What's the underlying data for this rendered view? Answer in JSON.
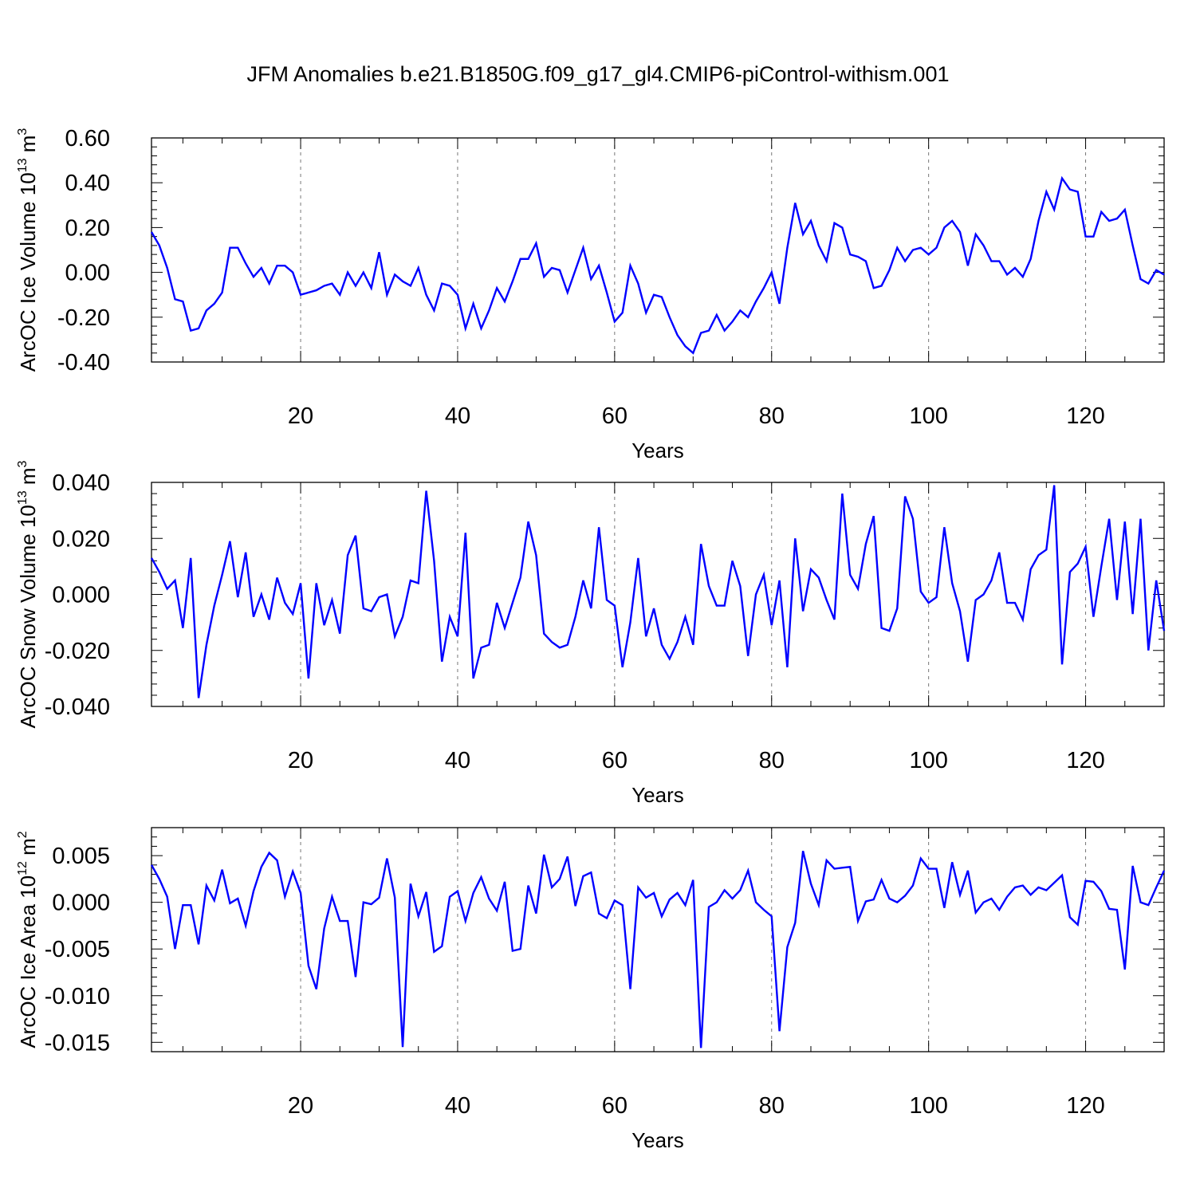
{
  "title": "JFM Anomalies b.e21.B1850G.f09_g17_gl4.CMIP6-piControl-withism.001",
  "colors": {
    "series": "#0000ff",
    "axis": "#000000",
    "grid": "#777777"
  },
  "chart_data": [
    {
      "type": "line",
      "xlabel": "Years",
      "ylabel": "ArcOC Ice Volume 10",
      "ylabel_exp": "13",
      "ylabel_unit": " m",
      "ylabel_unit_exp": "3",
      "xlim": [
        1,
        130
      ],
      "ylim": [
        -0.4,
        0.6
      ],
      "xticks": [
        20,
        40,
        60,
        80,
        100,
        120
      ],
      "xtick_labels": [
        "20",
        "40",
        "60",
        "80",
        "100",
        "120"
      ],
      "yticks": [
        -0.4,
        -0.2,
        0.0,
        0.2,
        0.4,
        0.6
      ],
      "ytick_labels": [
        "-0.40",
        "-0.20",
        "0.00",
        "0.20",
        "0.40",
        "0.60"
      ],
      "grid": "vertical dashed at major x ticks",
      "series": [
        {
          "x_start": 1,
          "values": [
            0.18,
            0.12,
            0.02,
            -0.12,
            -0.13,
            -0.26,
            -0.25,
            -0.17,
            -0.14,
            -0.09,
            0.11,
            0.11,
            0.04,
            -0.02,
            0.02,
            -0.05,
            0.03,
            0.03,
            0.0,
            -0.1,
            -0.09,
            -0.08,
            -0.06,
            -0.05,
            -0.1,
            0.0,
            -0.06,
            0.0,
            -0.07,
            0.09,
            -0.1,
            -0.01,
            -0.04,
            -0.06,
            0.02,
            -0.1,
            -0.17,
            -0.05,
            -0.06,
            -0.1,
            -0.25,
            -0.14,
            -0.25,
            -0.17,
            -0.07,
            -0.13,
            -0.04,
            0.06,
            0.06,
            0.13,
            -0.02,
            0.02,
            0.01,
            -0.09,
            0.01,
            0.11,
            -0.03,
            0.03,
            -0.09,
            -0.22,
            -0.18,
            0.03,
            -0.05,
            -0.18,
            -0.1,
            -0.11,
            -0.2,
            -0.28,
            -0.33,
            -0.36,
            -0.27,
            -0.26,
            -0.19,
            -0.26,
            -0.22,
            -0.17,
            -0.2,
            -0.13,
            -0.07,
            0.0,
            -0.14,
            0.11,
            0.31,
            0.17,
            0.23,
            0.12,
            0.05,
            0.22,
            0.2,
            0.08,
            0.07,
            0.05,
            -0.07,
            -0.06,
            0.01,
            0.11,
            0.05,
            0.1,
            0.11,
            0.08,
            0.11,
            0.2,
            0.23,
            0.18,
            0.03,
            0.17,
            0.12,
            0.05,
            0.05,
            -0.01,
            0.02,
            -0.02,
            0.06,
            0.23,
            0.36,
            0.28,
            0.42,
            0.37,
            0.36,
            0.16,
            0.16,
            0.27,
            0.23,
            0.24,
            0.28,
            0.12,
            -0.03,
            -0.05,
            0.01,
            -0.01
          ]
        }
      ]
    },
    {
      "type": "line",
      "xlabel": "Years",
      "ylabel": "ArcOC Snow Volume 10",
      "ylabel_exp": "13",
      "ylabel_unit": " m",
      "ylabel_unit_exp": "3",
      "xlim": [
        1,
        130
      ],
      "ylim": [
        -0.04,
        0.04
      ],
      "xticks": [
        20,
        40,
        60,
        80,
        100,
        120
      ],
      "xtick_labels": [
        "20",
        "40",
        "60",
        "80",
        "100",
        "120"
      ],
      "yticks": [
        -0.04,
        -0.02,
        0.0,
        0.02,
        0.04
      ],
      "ytick_labels": [
        "-0.040",
        "-0.020",
        "0.000",
        "0.020",
        "0.040"
      ],
      "grid": "vertical dashed at major x ticks",
      "series": [
        {
          "x_start": 1,
          "values": [
            0.013,
            0.008,
            0.002,
            0.005,
            -0.012,
            0.013,
            -0.037,
            -0.018,
            -0.004,
            0.007,
            0.019,
            -0.001,
            0.015,
            -0.008,
            0.0,
            -0.009,
            0.006,
            -0.003,
            -0.007,
            0.004,
            -0.03,
            0.004,
            -0.011,
            -0.002,
            -0.014,
            0.014,
            0.021,
            -0.005,
            -0.006,
            -0.001,
            0.0,
            -0.015,
            -0.008,
            0.005,
            0.004,
            0.037,
            0.012,
            -0.024,
            -0.008,
            -0.015,
            0.022,
            -0.03,
            -0.019,
            -0.018,
            -0.003,
            -0.012,
            -0.003,
            0.006,
            0.026,
            0.014,
            -0.014,
            -0.017,
            -0.019,
            -0.018,
            -0.008,
            0.005,
            -0.005,
            0.024,
            -0.002,
            -0.004,
            -0.026,
            -0.01,
            0.013,
            -0.015,
            -0.005,
            -0.018,
            -0.023,
            -0.017,
            -0.008,
            -0.018,
            0.018,
            0.003,
            -0.004,
            -0.004,
            0.012,
            0.003,
            -0.022,
            0.0,
            0.007,
            -0.011,
            0.005,
            -0.026,
            0.02,
            -0.006,
            0.009,
            0.006,
            -0.002,
            -0.009,
            0.036,
            0.007,
            0.002,
            0.018,
            0.028,
            -0.012,
            -0.013,
            -0.005,
            0.035,
            0.027,
            0.001,
            -0.003,
            -0.001,
            0.024,
            0.004,
            -0.006,
            -0.024,
            -0.002,
            0.0,
            0.005,
            0.015,
            -0.003,
            -0.003,
            -0.009,
            0.009,
            0.014,
            0.016,
            0.039,
            -0.025,
            0.008,
            0.011,
            0.017,
            -0.008,
            0.01,
            0.027,
            -0.002,
            0.026,
            -0.007,
            0.027,
            -0.02,
            0.005,
            -0.013
          ]
        }
      ]
    },
    {
      "type": "line",
      "xlabel": "Years",
      "ylabel": "ArcOC Ice Area 10",
      "ylabel_exp": "12",
      "ylabel_unit": " m",
      "ylabel_unit_exp": "2",
      "xlim": [
        1,
        130
      ],
      "ylim": [
        -0.016,
        0.008
      ],
      "xticks": [
        20,
        40,
        60,
        80,
        100,
        120
      ],
      "xtick_labels": [
        "20",
        "40",
        "60",
        "80",
        "100",
        "120"
      ],
      "yticks": [
        -0.015,
        -0.01,
        -0.005,
        0.0,
        0.005
      ],
      "ytick_labels": [
        "-0.015",
        "-0.010",
        "-0.005",
        "0.000",
        "0.005"
      ],
      "grid": "vertical dashed at major x ticks",
      "series": [
        {
          "x_start": 1,
          "values": [
            0.004,
            0.0025,
            0.0006,
            -0.005,
            -0.0003,
            -0.0003,
            -0.0045,
            0.0018,
            0.0002,
            0.0035,
            -0.0001,
            0.0004,
            -0.0025,
            0.0012,
            0.0038,
            0.0053,
            0.0045,
            0.0006,
            0.0033,
            0.001,
            -0.0068,
            -0.0093,
            -0.0028,
            0.0006,
            -0.002,
            -0.002,
            -0.008,
            0.0,
            -0.0002,
            0.0005,
            0.0047,
            0.0005,
            -0.0155,
            0.002,
            -0.0015,
            0.0011,
            -0.0053,
            -0.0047,
            0.0006,
            0.0012,
            -0.002,
            0.001,
            0.0027,
            0.0004,
            -0.0009,
            0.0022,
            -0.0052,
            -0.005,
            0.0018,
            -0.0012,
            0.0051,
            0.0016,
            0.0025,
            0.0049,
            -0.0004,
            0.0028,
            0.0032,
            -0.0012,
            -0.0017,
            0.0002,
            -0.0003,
            -0.0093,
            0.0016,
            0.0005,
            0.001,
            -0.0015,
            0.0003,
            0.001,
            -0.0003,
            0.0024,
            -0.0156,
            -0.0005,
            0.0,
            0.0013,
            0.0004,
            0.0013,
            0.0034,
            0.0,
            -0.0008,
            -0.0015,
            -0.0138,
            -0.0048,
            -0.0022,
            0.0055,
            0.002,
            -0.0003,
            0.0045,
            0.0036,
            0.0037,
            0.0038,
            -0.002,
            0.0001,
            0.0003,
            0.0024,
            0.0004,
            0.0,
            0.0007,
            0.0018,
            0.0047,
            0.0036,
            0.0036,
            -0.0006,
            0.0043,
            0.0008,
            0.0034,
            -0.0011,
            0.0,
            0.0004,
            -0.0008,
            0.0006,
            0.0016,
            0.0018,
            0.0008,
            0.0016,
            0.0013,
            0.0021,
            0.0029,
            -0.0016,
            -0.0024,
            0.0023,
            0.0022,
            0.0012,
            -0.0007,
            -0.0008,
            -0.0072,
            0.0039,
            0.0,
            -0.0003,
            0.0016,
            0.0034
          ]
        }
      ]
    }
  ]
}
